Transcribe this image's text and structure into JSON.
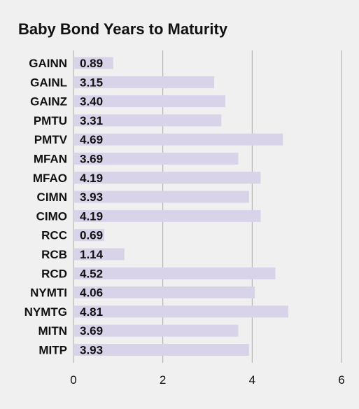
{
  "chart_data": {
    "type": "bar",
    "orientation": "horizontal",
    "title": "Baby Bond Years to Maturity",
    "xlabel": "",
    "ylabel": "",
    "categories": [
      "GAINN",
      "GAINL",
      "GAINZ",
      "PMTU",
      "PMTV",
      "MFAN",
      "MFAO",
      "CIMN",
      "CIMO",
      "RCC",
      "RCB",
      "RCD",
      "NYMTI",
      "NYMTG",
      "MITN",
      "MITP"
    ],
    "values": [
      0.89,
      3.15,
      3.4,
      3.31,
      4.69,
      3.69,
      4.19,
      3.93,
      4.19,
      0.69,
      1.14,
      4.52,
      4.06,
      4.81,
      3.69,
      3.93
    ],
    "value_labels": [
      "0.89",
      "3.15",
      "3.40",
      "3.31",
      "4.69",
      "3.69",
      "4.19",
      "3.93",
      "4.19",
      "0.69",
      "1.14",
      "4.52",
      "4.06",
      "4.81",
      "3.69",
      "3.93"
    ],
    "xlim": [
      0,
      6
    ],
    "x_ticks": [
      0,
      2,
      4,
      6
    ],
    "x_tick_labels": [
      "0",
      "2",
      "4",
      "6"
    ],
    "grid": "vertical",
    "legend": "none"
  },
  "colors": {
    "background": "#f0f0f0",
    "bar": "#d9d3ea",
    "grid": "#a8a8a8",
    "text": "#111111"
  }
}
